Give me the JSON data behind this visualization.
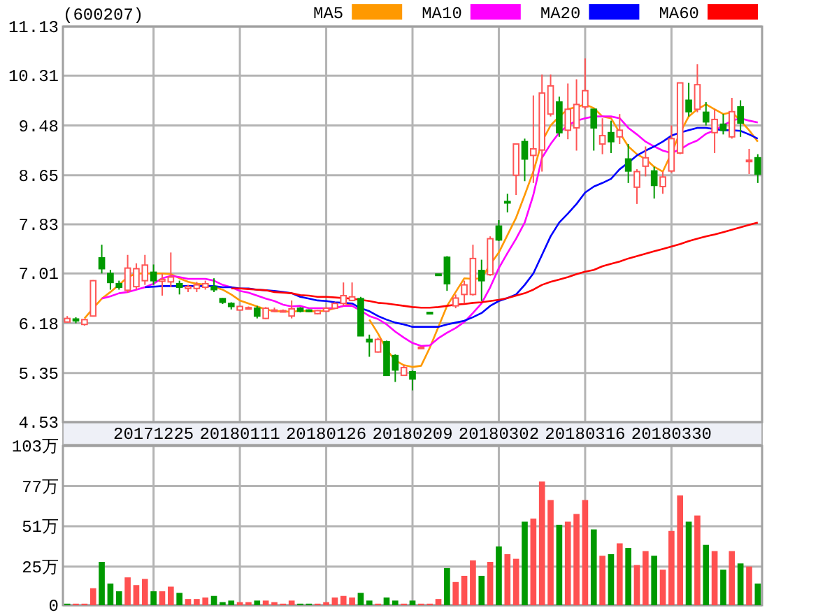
{
  "chart_data": [
    {
      "type": "candlestick",
      "title": "(600207)",
      "categories": [
        null,
        null,
        null,
        null,
        null,
        null,
        null,
        null,
        null,
        null,
        "20171225",
        null,
        null,
        null,
        null,
        null,
        null,
        null,
        null,
        null,
        "20180111",
        null,
        null,
        null,
        null,
        null,
        null,
        null,
        null,
        null,
        "20180126",
        null,
        null,
        null,
        null,
        null,
        null,
        null,
        null,
        null,
        "20180209",
        null,
        null,
        null,
        null,
        null,
        null,
        null,
        null,
        null,
        "20180302",
        null,
        null,
        null,
        null,
        null,
        null,
        null,
        null,
        null,
        "20180316",
        null,
        null,
        null,
        null,
        null,
        null,
        null,
        null,
        null,
        "20180330",
        null,
        null,
        null,
        null,
        null,
        null,
        null,
        null,
        null,
        null
      ],
      "ohlc": [
        [
          6.2,
          6.3,
          6.19,
          6.26
        ],
        [
          6.25,
          6.28,
          6.18,
          6.22
        ],
        [
          6.16,
          6.25,
          6.14,
          6.24
        ],
        [
          6.3,
          6.9,
          6.29,
          6.89
        ],
        [
          7.27,
          7.49,
          7.01,
          7.09
        ],
        [
          7.01,
          7.07,
          6.74,
          6.86
        ],
        [
          6.84,
          6.89,
          6.74,
          6.78
        ],
        [
          6.73,
          7.32,
          6.69,
          7.1
        ],
        [
          6.79,
          7.18,
          6.74,
          7.09
        ],
        [
          6.89,
          7.32,
          6.82,
          7.15
        ],
        [
          7.03,
          7.16,
          6.82,
          6.89
        ],
        [
          6.88,
          7.01,
          6.64,
          6.91
        ],
        [
          6.87,
          7.36,
          6.78,
          6.95
        ],
        [
          6.84,
          6.89,
          6.66,
          6.78
        ],
        [
          6.76,
          6.82,
          6.7,
          6.79
        ],
        [
          6.76,
          6.87,
          6.7,
          6.82
        ],
        [
          6.78,
          6.89,
          6.74,
          6.84
        ],
        [
          6.79,
          6.93,
          6.7,
          6.74
        ],
        [
          6.59,
          6.6,
          6.5,
          6.53
        ],
        [
          6.51,
          6.53,
          6.41,
          6.46
        ],
        [
          6.4,
          6.47,
          6.39,
          6.46
        ],
        [
          6.42,
          6.46,
          6.41,
          6.44
        ],
        [
          6.43,
          6.47,
          6.26,
          6.3
        ],
        [
          6.26,
          6.45,
          6.25,
          6.43
        ],
        [
          6.39,
          6.44,
          6.37,
          6.4
        ],
        [
          6.37,
          6.41,
          6.36,
          6.39
        ],
        [
          6.3,
          6.56,
          6.26,
          6.42
        ],
        [
          6.43,
          6.45,
          6.36,
          6.38
        ],
        [
          6.4,
          6.41,
          6.37,
          6.38
        ],
        [
          6.34,
          6.4,
          6.33,
          6.39
        ],
        [
          6.38,
          6.45,
          6.37,
          6.43
        ],
        [
          6.43,
          6.53,
          6.42,
          6.51
        ],
        [
          6.51,
          6.86,
          6.47,
          6.64
        ],
        [
          6.56,
          6.86,
          6.55,
          6.62
        ],
        [
          6.59,
          6.62,
          5.97,
          5.97
        ],
        [
          5.91,
          5.99,
          5.62,
          5.87
        ],
        [
          5.7,
          5.94,
          5.69,
          5.91
        ],
        [
          5.87,
          5.89,
          5.3,
          5.31
        ],
        [
          5.64,
          5.66,
          5.2,
          5.4
        ],
        [
          5.31,
          5.48,
          5.3,
          5.44
        ],
        [
          5.37,
          5.39,
          5.06,
          5.25
        ],
        [
          5.78,
          5.78,
          5.78,
          5.78
        ],
        [
          6.36,
          6.36,
          6.36,
          6.36
        ],
        [
          7.0,
          7.0,
          7.0,
          7.0
        ],
        [
          7.28,
          7.3,
          6.72,
          6.84
        ],
        [
          6.47,
          6.66,
          6.43,
          6.6
        ],
        [
          6.66,
          6.89,
          6.51,
          6.82
        ],
        [
          6.66,
          7.49,
          6.64,
          7.26
        ],
        [
          7.06,
          7.24,
          6.55,
          6.89
        ],
        [
          6.99,
          7.63,
          6.97,
          7.59
        ],
        [
          7.8,
          7.9,
          7.55,
          7.57
        ],
        [
          8.21,
          8.34,
          8.03,
          8.19
        ],
        [
          8.65,
          9.17,
          8.32,
          9.17
        ],
        [
          9.21,
          9.26,
          8.55,
          8.92
        ],
        [
          8.98,
          9.98,
          8.52,
          9.09
        ],
        [
          9.07,
          10.33,
          8.71,
          10.02
        ],
        [
          9.67,
          10.33,
          9.63,
          10.14
        ],
        [
          9.87,
          9.96,
          9.29,
          9.36
        ],
        [
          9.4,
          10.18,
          9.25,
          9.75
        ],
        [
          9.44,
          10.25,
          9.06,
          9.83
        ],
        [
          9.79,
          10.6,
          9.75,
          10.06
        ],
        [
          9.75,
          9.75,
          9.06,
          9.44
        ],
        [
          9.17,
          9.6,
          9.0,
          9.31
        ],
        [
          9.36,
          9.56,
          9.02,
          9.21
        ],
        [
          9.29,
          9.67,
          9.17,
          9.4
        ],
        [
          8.92,
          9.17,
          8.52,
          8.72
        ],
        [
          8.45,
          8.75,
          8.17,
          8.71
        ],
        [
          8.8,
          9.13,
          8.63,
          8.94
        ],
        [
          8.72,
          8.79,
          8.26,
          8.48
        ],
        [
          8.46,
          8.71,
          8.34,
          8.62
        ],
        [
          8.72,
          9.48,
          8.69,
          9.26
        ],
        [
          9.02,
          10.19,
          9.0,
          10.19
        ],
        [
          9.9,
          10.19,
          9.63,
          9.71
        ],
        [
          9.75,
          10.5,
          9.7,
          10.16
        ],
        [
          9.7,
          9.87,
          9.48,
          9.54
        ],
        [
          9.36,
          9.75,
          9.02,
          9.58
        ],
        [
          9.5,
          9.67,
          9.33,
          9.4
        ],
        [
          9.29,
          9.94,
          9.26,
          9.71
        ],
        [
          9.79,
          9.9,
          9.29,
          9.52
        ],
        [
          8.88,
          9.09,
          8.67,
          8.9
        ],
        [
          8.94,
          9.0,
          8.52,
          8.67
        ]
      ],
      "colors": [
        "#ff5555",
        "#009900",
        "#ff5555",
        "#ff5555",
        "#009900",
        "#009900",
        "#009900",
        "#ff5555",
        "#ff5555",
        "#ff5555",
        "#009900",
        "#ff5555",
        "#ff5555",
        "#009900",
        "#ff5555",
        "#ff5555",
        "#ff5555",
        "#009900",
        "#009900",
        "#009900",
        "#ff5555",
        "#ff5555",
        "#009900",
        "#ff5555",
        "#ff5555",
        "#ff5555",
        "#ff5555",
        "#009900",
        "#009900",
        "#ff5555",
        "#ff5555",
        "#ff5555",
        "#ff5555",
        "#ff5555",
        "#009900",
        "#009900",
        "#ff5555",
        "#009900",
        "#009900",
        "#ff5555",
        "#009900",
        "#ff5555",
        "#009900",
        "#009900",
        "#009900",
        "#ff5555",
        "#ff5555",
        "#ff5555",
        "#009900",
        "#ff5555",
        "#009900",
        "#009900",
        "#ff5555",
        "#009900",
        "#ff5555",
        "#ff5555",
        "#ff5555",
        "#009900",
        "#ff5555",
        "#ff5555",
        "#ff5555",
        "#009900",
        "#ff5555",
        "#009900",
        "#ff5555",
        "#009900",
        "#ff5555",
        "#ff5555",
        "#009900",
        "#ff5555",
        "#ff5555",
        "#ff5555",
        "#009900",
        "#ff5555",
        "#009900",
        "#ff5555",
        "#009900",
        "#ff5555",
        "#009900",
        "#ff5555",
        "#009900"
      ],
      "series": [
        {
          "name": "MA5",
          "type": "line",
          "color": "#ff9900",
          "values": [
            null,
            null,
            6.26,
            6.43,
            6.59,
            6.7,
            6.82,
            6.95,
            7.01,
            7.01,
            7.01,
            7.01,
            7.0,
            6.93,
            6.87,
            6.84,
            6.82,
            6.79,
            6.74,
            6.66,
            6.56,
            6.51,
            6.46,
            6.41,
            6.38,
            6.38,
            6.37,
            6.39,
            6.38,
            6.38,
            6.39,
            6.43,
            6.47,
            6.51,
            null,
            6.24,
            6.01,
            5.74,
            5.56,
            5.48,
            5.45,
            5.47,
            5.77,
            6.12,
            6.47,
            6.7,
            6.93,
            6.92,
            6.93,
            7.16,
            7.36,
            7.65,
            7.94,
            8.32,
            8.71,
            9.21,
            9.48,
            9.63,
            9.75,
            9.79,
            9.83,
            9.77,
            9.63,
            9.6,
            9.36,
            9.13,
            9.0,
            8.92,
            8.79,
            8.71,
            9.02,
            9.36,
            9.63,
            9.75,
            9.83,
            9.75,
            9.67,
            9.7,
            9.56,
            9.4,
            9.21
          ]
        },
        {
          "name": "MA10",
          "type": "line",
          "color": "#ff00ff",
          "values": [
            null,
            null,
            null,
            null,
            6.59,
            6.63,
            6.68,
            6.7,
            6.74,
            6.78,
            6.84,
            6.93,
            6.97,
            6.95,
            6.92,
            6.92,
            6.92,
            6.89,
            6.82,
            6.78,
            6.72,
            6.69,
            6.64,
            6.59,
            6.55,
            6.49,
            6.46,
            6.47,
            6.43,
            6.43,
            6.43,
            6.43,
            6.47,
            6.47,
            6.39,
            6.3,
            6.25,
            6.16,
            6.04,
            5.94,
            5.85,
            5.8,
            5.81,
            5.93,
            6.02,
            6.1,
            6.2,
            6.35,
            6.51,
            6.78,
            7.1,
            7.35,
            7.59,
            7.86,
            8.32,
            8.94,
            9.17,
            9.36,
            9.48,
            9.56,
            9.6,
            9.63,
            9.63,
            9.63,
            9.6,
            9.44,
            9.33,
            9.21,
            9.13,
            9.06,
            9.02,
            9.08,
            9.17,
            9.23,
            9.34,
            9.4,
            9.48,
            9.56,
            9.6,
            9.56,
            9.53
          ]
        },
        {
          "name": "MA20",
          "type": "line",
          "color": "#0000ff",
          "values": [
            null,
            null,
            null,
            null,
            null,
            null,
            null,
            null,
            null,
            6.78,
            6.79,
            6.8,
            6.8,
            6.8,
            6.8,
            6.8,
            6.8,
            6.8,
            6.78,
            6.78,
            6.76,
            6.76,
            6.74,
            6.73,
            6.72,
            6.7,
            6.68,
            6.62,
            6.59,
            6.56,
            6.55,
            6.53,
            6.52,
            6.51,
            6.43,
            6.38,
            6.3,
            6.24,
            6.19,
            6.16,
            6.12,
            6.12,
            6.12,
            6.12,
            6.16,
            6.19,
            6.22,
            6.28,
            6.35,
            6.47,
            6.55,
            6.6,
            6.66,
            6.82,
            7.01,
            7.32,
            7.63,
            7.86,
            8.01,
            8.17,
            8.36,
            8.46,
            8.52,
            8.59,
            8.75,
            8.86,
            8.98,
            9.06,
            9.13,
            9.21,
            9.31,
            9.36,
            9.4,
            9.44,
            9.44,
            9.42,
            9.4,
            9.4,
            9.39,
            9.33,
            9.26
          ]
        },
        {
          "name": "MA60",
          "type": "line",
          "color": "#ff0000",
          "values": [
            null,
            null,
            null,
            null,
            null,
            null,
            null,
            null,
            null,
            null,
            null,
            null,
            null,
            null,
            null,
            null,
            null,
            null,
            null,
            6.76,
            6.76,
            6.75,
            6.74,
            6.73,
            6.7,
            6.69,
            6.68,
            6.65,
            6.64,
            6.62,
            6.62,
            6.61,
            6.6,
            6.59,
            6.57,
            6.55,
            6.52,
            6.51,
            6.49,
            6.47,
            6.45,
            6.44,
            6.44,
            6.45,
            6.47,
            6.49,
            6.5,
            6.52,
            6.53,
            6.55,
            6.57,
            6.6,
            6.64,
            6.68,
            6.74,
            6.82,
            6.87,
            6.91,
            6.95,
            7.0,
            7.04,
            7.07,
            7.13,
            7.17,
            7.21,
            7.26,
            7.3,
            7.34,
            7.38,
            7.42,
            7.46,
            7.5,
            7.55,
            7.59,
            7.63,
            7.66,
            7.7,
            7.74,
            7.78,
            7.82,
            7.86
          ]
        }
      ],
      "ylim": [
        4.53,
        11.13
      ],
      "yticks": [
        4.53,
        5.35,
        6.18,
        7.01,
        7.83,
        8.65,
        9.48,
        10.31,
        11.13
      ],
      "grid": true,
      "legend": "top right"
    },
    {
      "type": "bar",
      "categories": [
        null,
        null,
        null,
        null,
        null,
        null,
        null,
        null,
        null,
        null,
        null,
        null,
        null,
        null,
        null,
        null,
        null,
        null,
        null,
        null,
        null,
        null,
        null,
        null,
        null,
        null,
        null,
        null,
        null,
        null,
        null,
        null,
        null,
        null,
        null,
        null,
        null,
        null,
        null,
        null,
        null,
        null,
        null,
        null,
        null,
        null,
        null,
        null,
        null,
        null,
        null,
        null,
        null,
        null,
        null,
        null,
        null,
        null,
        null,
        null,
        null,
        null,
        null,
        null,
        null,
        null,
        null,
        null,
        null,
        null,
        null,
        null,
        null,
        null,
        null,
        null,
        null,
        null,
        null,
        null,
        null
      ],
      "values": [
        1,
        1,
        1,
        11,
        28,
        14,
        9,
        18,
        13,
        17,
        9,
        9,
        12,
        8,
        4,
        4,
        5,
        6,
        2,
        3,
        2,
        2,
        3,
        3,
        2,
        1,
        3,
        1,
        1,
        1,
        2,
        5,
        6,
        5,
        8,
        3,
        1,
        5,
        3,
        1,
        3,
        1,
        1,
        4,
        24,
        15,
        19,
        29,
        19,
        28,
        38,
        33,
        30,
        54,
        56,
        80,
        68,
        52,
        54,
        59,
        68,
        49,
        32,
        33,
        40,
        37,
        26,
        35,
        32,
        23,
        48,
        71,
        54,
        58,
        39,
        35,
        23,
        35,
        27,
        25,
        14
      ],
      "colors": [
        "#009900",
        "#ff5050",
        "#ff5050",
        "#ff5050",
        "#009900",
        "#009900",
        "#009900",
        "#ff5050",
        "#ff5050",
        "#ff5050",
        "#009900",
        "#ff5050",
        "#ff5050",
        "#009900",
        "#ff5050",
        "#ff5050",
        "#ff5050",
        "#009900",
        "#009900",
        "#009900",
        "#ff5050",
        "#ff5050",
        "#009900",
        "#ff5050",
        "#ff5050",
        "#ff5050",
        "#ff5050",
        "#009900",
        "#009900",
        "#ff5050",
        "#ff5050",
        "#ff5050",
        "#ff5050",
        "#ff5050",
        "#009900",
        "#009900",
        "#ff5050",
        "#009900",
        "#009900",
        "#ff5050",
        "#009900",
        "#ff5050",
        "#ff5050",
        "#ff5050",
        "#009900",
        "#ff5050",
        "#ff5050",
        "#ff5050",
        "#009900",
        "#ff5050",
        "#009900",
        "#ff5050",
        "#ff5050",
        "#009900",
        "#ff5050",
        "#ff5050",
        "#ff5050",
        "#009900",
        "#ff5050",
        "#ff5050",
        "#ff5050",
        "#009900",
        "#ff5050",
        "#009900",
        "#ff5050",
        "#009900",
        "#ff5050",
        "#ff5050",
        "#009900",
        "#ff5050",
        "#ff5050",
        "#ff5050",
        "#009900",
        "#ff5050",
        "#009900",
        "#ff5050",
        "#009900",
        "#ff5050",
        "#009900",
        "#ff5050",
        "#009900"
      ],
      "ylim": [
        0,
        103
      ],
      "yticks": [
        {
          "value": 0,
          "label": "0"
        },
        {
          "value": 25,
          "label": "25万"
        },
        {
          "value": 51,
          "label": "51万"
        },
        {
          "value": 77,
          "label": "77万"
        },
        {
          "value": 103,
          "label": "103万"
        }
      ],
      "grid": true,
      "tick_labels": "y"
    }
  ]
}
